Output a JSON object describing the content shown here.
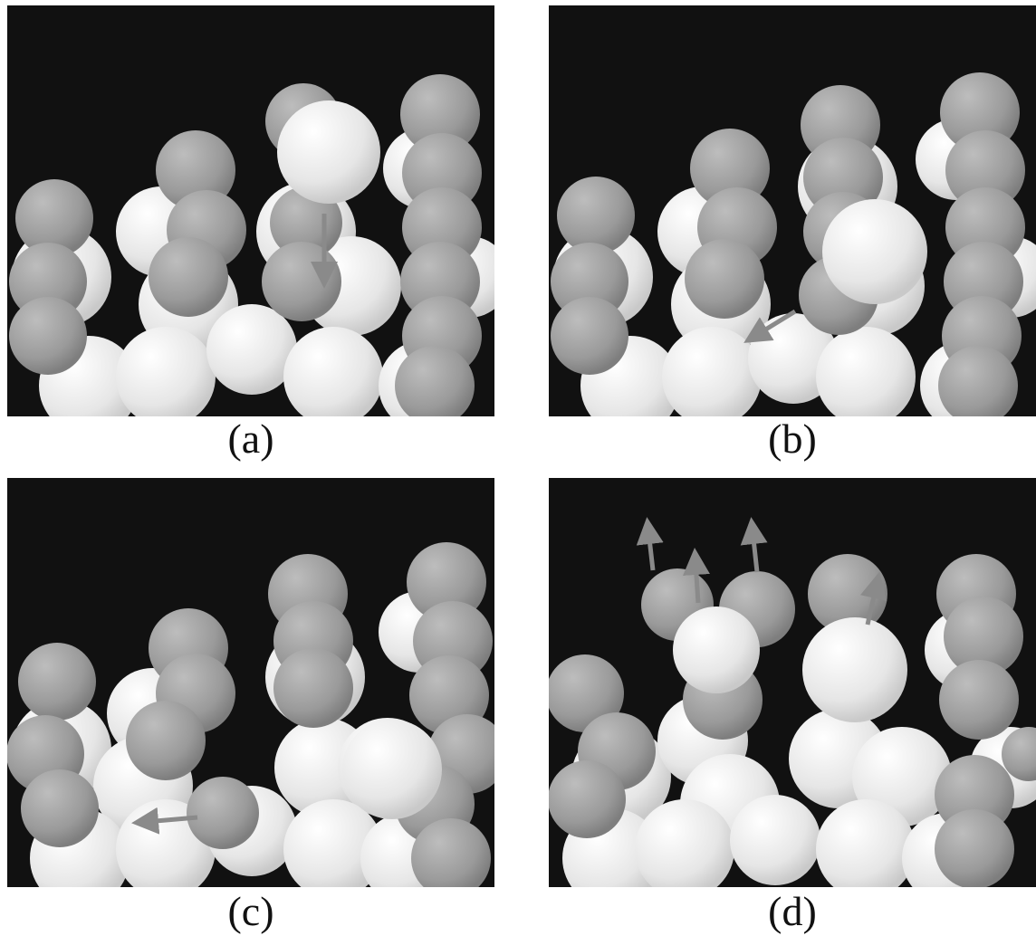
{
  "panels": [
    {
      "id": "a",
      "caption": "(a)"
    },
    {
      "id": "b",
      "caption": "(b)"
    },
    {
      "id": "c",
      "caption": "(c)"
    },
    {
      "id": "d",
      "caption": "(d)"
    }
  ],
  "colors": {
    "background": "#111111",
    "sphere_gray": "#9a9a9a",
    "sphere_white": "#eeeeee",
    "arrow": "#8a8a8a"
  }
}
